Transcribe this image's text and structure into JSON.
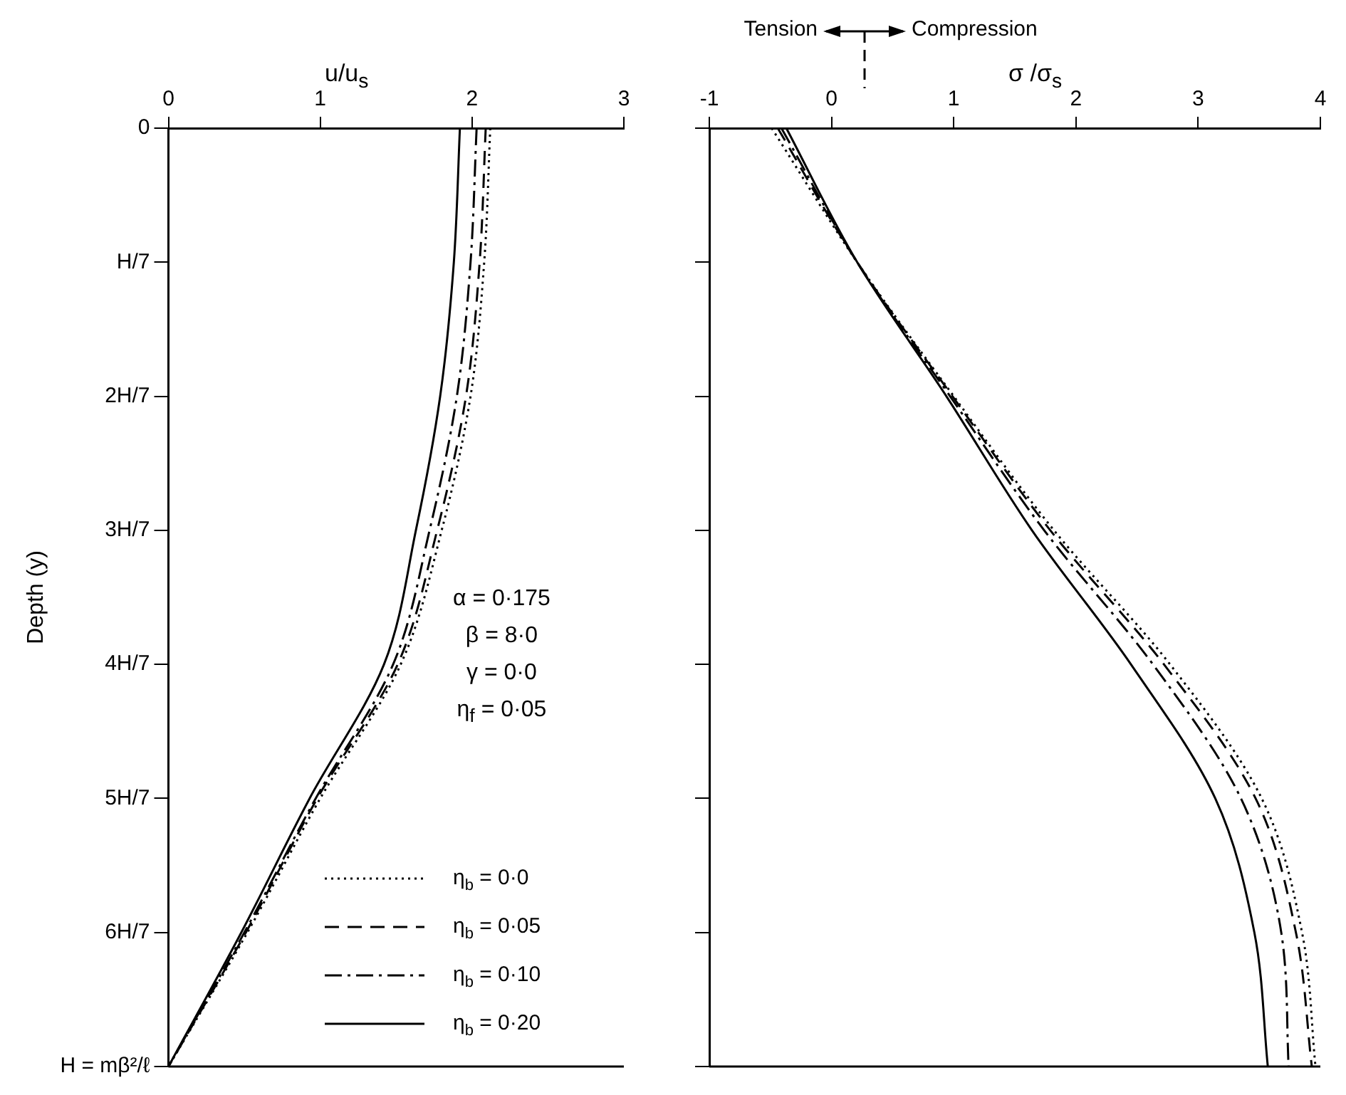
{
  "chart_data": [
    {
      "type": "line",
      "orientation": "horizontal",
      "xlabel": "u/u$_{s}$",
      "ylabel": "Depth (y)",
      "xlim": [
        0,
        3
      ],
      "xticks": [
        0,
        1,
        2,
        3
      ],
      "categories": [
        "0",
        "H/7",
        "2H/7",
        "3H/7",
        "4H/7",
        "5H/7",
        "6H/7",
        "H = mβ²/ℓ"
      ],
      "grid": false,
      "marker": "none",
      "legend": "bottom right",
      "annotations": [
        "α = 0·175",
        "β = 8·0",
        "γ = 0·0",
        "η$_{f}$ = 0·05"
      ],
      "series": [
        {
          "name": "η$_{b}$ = 0·0",
          "color": "#000000",
          "line_style": "dotted",
          "values": [
            2.12,
            2.08,
            1.99,
            1.8,
            1.53,
            1.0,
            0.52,
            0
          ]
        },
        {
          "name": "η$_{b}$ = 0·05",
          "color": "#000000",
          "line_style": "dashed",
          "values": [
            2.09,
            2.05,
            1.96,
            1.77,
            1.51,
            0.98,
            0.51,
            0
          ]
        },
        {
          "name": "η$_{b}$ = 0·10",
          "color": "#000000",
          "line_style": "dashdot",
          "values": [
            2.03,
            1.99,
            1.9,
            1.72,
            1.48,
            0.97,
            0.5,
            0
          ]
        },
        {
          "name": "η$_{b}$ = 0·20",
          "color": "#000000",
          "line_style": "solid",
          "values": [
            1.92,
            1.88,
            1.79,
            1.63,
            1.42,
            0.93,
            0.48,
            0
          ]
        }
      ]
    },
    {
      "type": "line",
      "orientation": "horizontal",
      "xlabel": "σ /σ$_{s}$",
      "xlim": [
        -1,
        4
      ],
      "xticks": [
        -1,
        0,
        1,
        2,
        3,
        4
      ],
      "categories": [
        null,
        null,
        null,
        null,
        null,
        null,
        null,
        null
      ],
      "grid": false,
      "marker": "none",
      "annotations": [
        "Tension",
        "Compression"
      ],
      "series": [
        {
          "color": "#000000",
          "line_style": "dotted",
          "values": [
            -0.49,
            0.21,
            1.0,
            1.82,
            2.77,
            3.52,
            3.85,
            3.96
          ]
        },
        {
          "color": "#000000",
          "line_style": "dashed",
          "values": [
            -0.44,
            0.21,
            0.99,
            1.79,
            2.72,
            3.47,
            3.8,
            3.93
          ]
        },
        {
          "color": "#000000",
          "line_style": "dashdot",
          "values": [
            -0.41,
            0.21,
            0.97,
            1.74,
            2.63,
            3.35,
            3.68,
            3.74
          ]
        },
        {
          "color": "#000000",
          "line_style": "solid",
          "values": [
            -0.37,
            0.21,
            0.94,
            1.64,
            2.45,
            3.14,
            3.46,
            3.57
          ]
        }
      ]
    }
  ]
}
